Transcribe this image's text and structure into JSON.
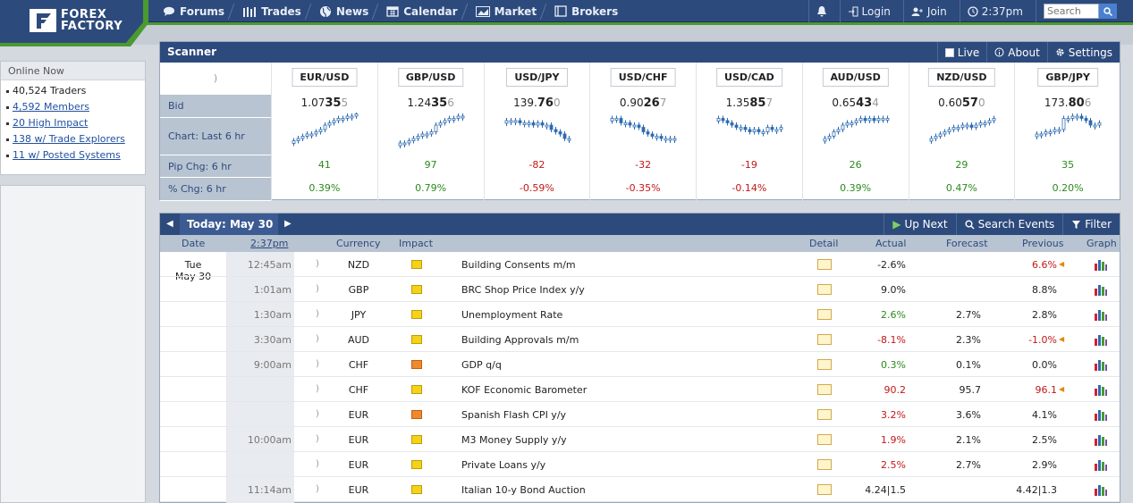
{
  "brand": {
    "line1": "FOREX",
    "line2": "FACTORY"
  },
  "nav": [
    {
      "label": "Forums",
      "icon": "chat-icon"
    },
    {
      "label": "Trades",
      "icon": "bars-icon"
    },
    {
      "label": "News",
      "icon": "globe-icon"
    },
    {
      "label": "Calendar",
      "icon": "calendar-icon"
    },
    {
      "label": "Market",
      "icon": "chart-icon"
    },
    {
      "label": "Brokers",
      "icon": "brokers-icon"
    }
  ],
  "user_nav": {
    "login": "Login",
    "join": "Join",
    "time": "2:37pm",
    "search_placeholder": "Search"
  },
  "online": {
    "title": "Online Now",
    "items": [
      "40,524 Traders",
      "4,592 Members",
      "20 High Impact",
      "138 w/ Trade Explorers",
      "11 w/ Posted Systems"
    ]
  },
  "scanner": {
    "title": "Scanner",
    "tools": [
      "Live",
      "About",
      "Settings"
    ],
    "labels": [
      "Bid",
      "Chart: Last 6 hr",
      "Pip Chg: 6 hr",
      "% Chg: 6 hr"
    ],
    "pairs": [
      {
        "name": "EUR/USD",
        "bid_a": "1.07",
        "bid_b": "35",
        "bid_c": "5",
        "pip": "41",
        "pct": "0.39%",
        "dir": "pos"
      },
      {
        "name": "GBP/USD",
        "bid_a": "1.24",
        "bid_b": "35",
        "bid_c": "6",
        "pip": "97",
        "pct": "0.79%",
        "dir": "pos"
      },
      {
        "name": "USD/JPY",
        "bid_a": "139.",
        "bid_b": "76",
        "bid_c": "0",
        "pip": "-82",
        "pct": "-0.59%",
        "dir": "neg"
      },
      {
        "name": "USD/CHF",
        "bid_a": "0.90",
        "bid_b": "26",
        "bid_c": "7",
        "pip": "-32",
        "pct": "-0.35%",
        "dir": "neg"
      },
      {
        "name": "USD/CAD",
        "bid_a": "1.35",
        "bid_b": "85",
        "bid_c": "7",
        "pip": "-19",
        "pct": "-0.14%",
        "dir": "neg"
      },
      {
        "name": "AUD/USD",
        "bid_a": "0.65",
        "bid_b": "43",
        "bid_c": "4",
        "pip": "26",
        "pct": "0.39%",
        "dir": "pos"
      },
      {
        "name": "NZD/USD",
        "bid_a": "0.60",
        "bid_b": "57",
        "bid_c": "0",
        "pip": "29",
        "pct": "0.47%",
        "dir": "pos"
      },
      {
        "name": "GBP/JPY",
        "bid_a": "173.",
        "bid_b": "80",
        "bid_c": "6",
        "pip": "35",
        "pct": "0.20%",
        "dir": "pos"
      }
    ]
  },
  "calendar": {
    "today": "Today: May 30",
    "tools": [
      "Up Next",
      "Search Events",
      "Filter"
    ],
    "headers": [
      "Date",
      "2:37pm",
      "Currency",
      "Impact",
      "Detail",
      "Actual",
      "Forecast",
      "Previous",
      "Graph"
    ],
    "day": "Tue",
    "date": "May 30",
    "rows": [
      {
        "time": "12:45am",
        "cur": "NZD",
        "impact": "yellow",
        "event": "Building Consents m/m",
        "actual": "-2.6%",
        "forecast": "",
        "previous": "6.6%",
        "act_c": "#222",
        "prev_c": "#c21818",
        "flag": true
      },
      {
        "time": "1:01am",
        "cur": "GBP",
        "impact": "yellow",
        "event": "BRC Shop Price Index y/y",
        "actual": "9.0%",
        "forecast": "",
        "previous": "8.8%",
        "act_c": "#222",
        "prev_c": "#222",
        "flag": false
      },
      {
        "time": "1:30am",
        "cur": "JPY",
        "impact": "yellow",
        "event": "Unemployment Rate",
        "actual": "2.6%",
        "forecast": "2.7%",
        "previous": "2.8%",
        "act_c": "#2a8a1c",
        "prev_c": "#222",
        "flag": false
      },
      {
        "time": "3:30am",
        "cur": "AUD",
        "impact": "yellow",
        "event": "Building Approvals m/m",
        "actual": "-8.1%",
        "forecast": "2.3%",
        "previous": "-1.0%",
        "act_c": "#c21818",
        "prev_c": "#c21818",
        "flag": true
      },
      {
        "time": "9:00am",
        "cur": "CHF",
        "impact": "orange",
        "event": "GDP q/q",
        "actual": "0.3%",
        "forecast": "0.1%",
        "previous": "0.0%",
        "act_c": "#2a8a1c",
        "prev_c": "#222",
        "flag": false
      },
      {
        "time": "",
        "cur": "CHF",
        "impact": "yellow",
        "event": "KOF Economic Barometer",
        "actual": "90.2",
        "forecast": "95.7",
        "previous": "96.1",
        "act_c": "#c21818",
        "prev_c": "#c21818",
        "flag": true
      },
      {
        "time": "",
        "cur": "EUR",
        "impact": "orange",
        "event": "Spanish Flash CPI y/y",
        "actual": "3.2%",
        "forecast": "3.6%",
        "previous": "4.1%",
        "act_c": "#c21818",
        "prev_c": "#222",
        "flag": false
      },
      {
        "time": "10:00am",
        "cur": "EUR",
        "impact": "yellow",
        "event": "M3 Money Supply y/y",
        "actual": "1.9%",
        "forecast": "2.1%",
        "previous": "2.5%",
        "act_c": "#c21818",
        "prev_c": "#222",
        "flag": false
      },
      {
        "time": "",
        "cur": "EUR",
        "impact": "yellow",
        "event": "Private Loans y/y",
        "actual": "2.5%",
        "forecast": "2.7%",
        "previous": "2.9%",
        "act_c": "#c21818",
        "prev_c": "#222",
        "flag": false
      },
      {
        "time": "11:14am",
        "cur": "EUR",
        "impact": "yellow",
        "event": "Italian 10-y Bond Auction",
        "actual": "4.24|1.5",
        "forecast": "",
        "previous": "4.42|1.3",
        "act_c": "#222",
        "prev_c": "#222",
        "flag": false
      }
    ]
  }
}
